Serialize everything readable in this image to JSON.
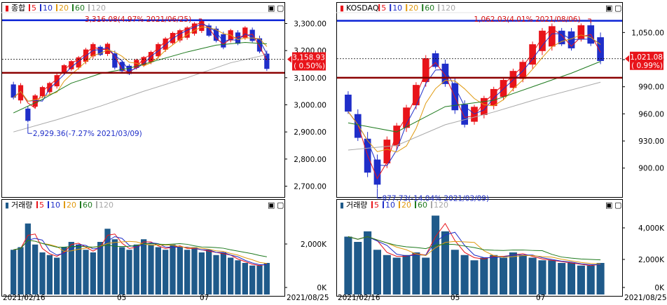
{
  "colors": {
    "up": "#e8141a",
    "down": "#1f2ec9",
    "ma5": "#e8141a",
    "ma10": "#1f2ec9",
    "ma20": "#e09a10",
    "ma60": "#1e7a1e",
    "ma120": "#a9a9a9",
    "high_line": "#0a23d6",
    "low_line": "#8b0000",
    "volume_bar": "#1f5a8a",
    "high_text": "#d51010",
    "low_text": "#1f2ec9",
    "badge_bg": "#e8141a",
    "badge_text": "#ffffff"
  },
  "panels": [
    {
      "legend": {
        "marker": "▮",
        "name": "종합",
        "ma": [
          "5",
          "10",
          "20",
          "60",
          "120"
        ]
      },
      "volume_legend": {
        "marker": "▮",
        "name": "거래량",
        "ma": [
          "5",
          "10",
          "20",
          "60",
          "120"
        ]
      },
      "window_buttons": [
        "▣",
        "▢"
      ],
      "x_labels": [
        {
          "label": "2021/02/16"
        },
        {
          "label": "05"
        },
        {
          "label": "07"
        }
      ],
      "y_ticks": [
        "3,300.00",
        "3,200.00",
        "3,100.00",
        "3,000.00",
        "2,900.00",
        "2,800.00",
        "2,700.00"
      ],
      "current_badge": [
        "3,158.93",
        "( 0.50%)"
      ],
      "annotation_high": "3,316.08(4.97% 2021/06/25)",
      "annotation_low": "2,929.36(-7.27% 2021/03/09)",
      "volume_ticks": [
        "2,000K",
        "0K"
      ],
      "series": {
        "ranges": [
          [
            3020,
            3085
          ],
          [
            3005,
            3080
          ],
          [
            2935,
            2995
          ],
          [
            2985,
            3040
          ],
          [
            3025,
            3070
          ],
          [
            3040,
            3085
          ],
          [
            3060,
            3115
          ],
          [
            3110,
            3150
          ],
          [
            3125,
            3165
          ],
          [
            3130,
            3180
          ],
          [
            3150,
            3210
          ],
          [
            3170,
            3230
          ],
          [
            3180,
            3220
          ],
          [
            3180,
            3230
          ],
          [
            3130,
            3200
          ],
          [
            3120,
            3165
          ],
          [
            3110,
            3150
          ],
          [
            3130,
            3170
          ],
          [
            3140,
            3180
          ],
          [
            3150,
            3200
          ],
          [
            3170,
            3230
          ],
          [
            3195,
            3250
          ],
          [
            3220,
            3270
          ],
          [
            3230,
            3280
          ],
          [
            3240,
            3290
          ],
          [
            3255,
            3305
          ],
          [
            3265,
            3315
          ],
          [
            3250,
            3300
          ],
          [
            3230,
            3290
          ],
          [
            3205,
            3270
          ],
          [
            3230,
            3280
          ],
          [
            3220,
            3275
          ],
          [
            3240,
            3290
          ],
          [
            3230,
            3285
          ],
          [
            3190,
            3255
          ],
          [
            3125,
            3200
          ]
        ],
        "dir": [
          -1,
          1,
          -1,
          1,
          1,
          1,
          1,
          1,
          1,
          1,
          1,
          1,
          -1,
          1,
          -1,
          -1,
          -1,
          1,
          1,
          1,
          1,
          1,
          1,
          1,
          1,
          1,
          1,
          -1,
          -1,
          -1,
          1,
          -1,
          1,
          -1,
          -1,
          -1
        ],
        "ma60": [
          [
            0,
            2970
          ],
          [
            4,
            3020
          ],
          [
            8,
            3080
          ],
          [
            12,
            3115
          ],
          [
            16,
            3135
          ],
          [
            20,
            3165
          ],
          [
            24,
            3195
          ],
          [
            28,
            3220
          ],
          [
            32,
            3230
          ],
          [
            35,
            3225
          ]
        ],
        "ma120": [
          [
            0,
            2900
          ],
          [
            6,
            2945
          ],
          [
            12,
            2995
          ],
          [
            18,
            3050
          ],
          [
            24,
            3100
          ],
          [
            30,
            3155
          ],
          [
            35,
            3185
          ]
        ],
        "volume": [
          0.85,
          0.9,
          1.35,
          0.95,
          0.8,
          0.75,
          0.7,
          0.9,
          1.0,
          0.95,
          0.85,
          0.8,
          1.0,
          1.25,
          1.05,
          0.9,
          0.85,
          0.95,
          1.05,
          0.95,
          0.9,
          0.85,
          0.95,
          0.9,
          0.85,
          0.9,
          0.8,
          0.85,
          0.75,
          0.8,
          0.7,
          0.65,
          0.6,
          0.55,
          0.55,
          0.6
        ]
      }
    },
    {
      "legend": {
        "marker": "▮",
        "name": "KOSDAQ",
        "ma": [
          "5",
          "10",
          "20",
          "60",
          "120"
        ]
      },
      "volume_legend": {
        "marker": "▮",
        "name": "거래량",
        "ma": [
          "5",
          "10",
          "20",
          "60",
          "120"
        ]
      },
      "window_buttons": [
        "▣",
        "▢"
      ],
      "x_labels": [
        {
          "label": "2021/02/16"
        },
        {
          "label": "05"
        },
        {
          "label": "07"
        }
      ],
      "y_ticks": [
        "1,050.00",
        "1,020.00",
        "990.00",
        "960.00",
        "930.00",
        "900.00"
      ],
      "current_badge": [
        "1,021.08",
        "( 0.99%)"
      ],
      "annotation_high": "1,062.03(4.01% 2021/08/06)",
      "annotation_low": "877.73(-14.04% 2021/03/09)",
      "volume_ticks": [
        "4,000K",
        "2,000K",
        "0K"
      ],
      "series": {
        "ranges": [
          [
            960,
            985
          ],
          [
            930,
            965
          ],
          [
            890,
            940
          ],
          [
            878,
            915
          ],
          [
            900,
            935
          ],
          [
            920,
            950
          ],
          [
            940,
            970
          ],
          [
            965,
            995
          ],
          [
            990,
            1025
          ],
          [
            1010,
            1030
          ],
          [
            990,
            1020
          ],
          [
            960,
            1000
          ],
          [
            945,
            975
          ],
          [
            948,
            970
          ],
          [
            955,
            980
          ],
          [
            965,
            990
          ],
          [
            975,
            1000
          ],
          [
            985,
            1010
          ],
          [
            995,
            1020
          ],
          [
            1010,
            1040
          ],
          [
            1025,
            1055
          ],
          [
            1030,
            1060
          ],
          [
            1035,
            1055
          ],
          [
            1030,
            1055
          ],
          [
            1040,
            1060
          ],
          [
            1035,
            1062
          ],
          [
            1015,
            1050
          ]
        ],
        "dir": [
          -1,
          -1,
          -1,
          -1,
          1,
          1,
          1,
          1,
          1,
          -1,
          -1,
          -1,
          -1,
          1,
          1,
          1,
          1,
          1,
          1,
          1,
          1,
          1,
          -1,
          -1,
          1,
          -1,
          -1
        ],
        "ma60": [
          [
            0,
            950
          ],
          [
            5,
            940
          ],
          [
            10,
            968
          ],
          [
            15,
            975
          ],
          [
            19,
            990
          ],
          [
            23,
            1005
          ],
          [
            26,
            1018
          ]
        ],
        "ma120": [
          [
            0,
            920
          ],
          [
            5,
            925
          ],
          [
            10,
            948
          ],
          [
            15,
            962
          ],
          [
            20,
            978
          ],
          [
            26,
            995
          ]
        ],
        "volume": [
          1.1,
          1.0,
          1.2,
          0.85,
          0.75,
          0.7,
          0.75,
          0.8,
          0.7,
          1.5,
          1.2,
          0.85,
          0.75,
          0.65,
          0.7,
          0.75,
          0.7,
          0.8,
          0.75,
          0.7,
          0.65,
          0.65,
          0.6,
          0.6,
          0.55,
          0.55,
          0.6
        ]
      }
    }
  ],
  "end_date": "2021/08/25"
}
